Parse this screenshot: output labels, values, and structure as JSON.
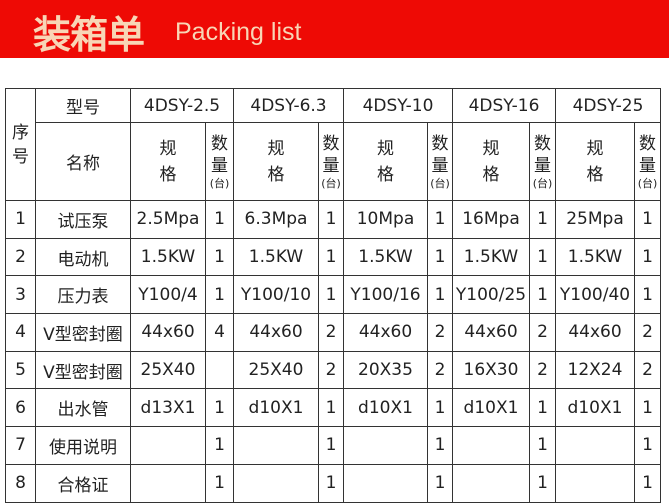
{
  "header": {
    "title_cn": "装箱单",
    "title_en": "Packing list",
    "banner_color": "#ee0a05"
  },
  "table": {
    "seq_label_1": "序",
    "seq_label_2": "号",
    "model_label": "型号",
    "name_label": "名称",
    "models": [
      "4DSY-2.5",
      "4DSY-6.3",
      "4DSY-10",
      "4DSY-16",
      "4DSY-25"
    ],
    "spec_label_1": "规",
    "spec_label_2": "格",
    "qty_label_1": "数",
    "qty_label_2": "量",
    "qty_unit": "(台)",
    "rows": [
      {
        "no": "1",
        "name": "试压泵",
        "cells": [
          [
            "2.5Mpa",
            "1"
          ],
          [
            "6.3Mpa",
            "1"
          ],
          [
            "10Mpa",
            "1"
          ],
          [
            "16Mpa",
            "1"
          ],
          [
            "25Mpa",
            "1"
          ]
        ]
      },
      {
        "no": "2",
        "name": "电动机",
        "cells": [
          [
            "1.5KW",
            "1"
          ],
          [
            "1.5KW",
            "1"
          ],
          [
            "1.5KW",
            "1"
          ],
          [
            "1.5KW",
            "1"
          ],
          [
            "1.5KW",
            "1"
          ]
        ]
      },
      {
        "no": "3",
        "name": "压力表",
        "cells": [
          [
            "Y100/4",
            "1"
          ],
          [
            "Y100/10",
            "1"
          ],
          [
            "Y100/16",
            "1"
          ],
          [
            "Y100/25",
            "1"
          ],
          [
            "Y100/40",
            "1"
          ]
        ]
      },
      {
        "no": "4",
        "name": "V型密封圈",
        "cells": [
          [
            "44x60",
            "4"
          ],
          [
            "44x60",
            "2"
          ],
          [
            "44x60",
            "2"
          ],
          [
            "44x60",
            "2"
          ],
          [
            "44x60",
            "2"
          ]
        ]
      },
      {
        "no": "5",
        "name": "V型密封圈",
        "cells": [
          [
            "25X40",
            ""
          ],
          [
            "25X40",
            "2"
          ],
          [
            "20X35",
            "2"
          ],
          [
            "16X30",
            "2"
          ],
          [
            "12X24",
            "2"
          ]
        ]
      },
      {
        "no": "6",
        "name": "出水管",
        "cells": [
          [
            "d13X1",
            "1"
          ],
          [
            "d10X1",
            "1"
          ],
          [
            "d10X1",
            "1"
          ],
          [
            "d10X1",
            "1"
          ],
          [
            "d10X1",
            "1"
          ]
        ]
      },
      {
        "no": "7",
        "name": "使用说明",
        "cells": [
          [
            "",
            "1"
          ],
          [
            "",
            "1"
          ],
          [
            "",
            "1"
          ],
          [
            "",
            "1"
          ],
          [
            "",
            "1"
          ]
        ]
      },
      {
        "no": "8",
        "name": "合格证",
        "cells": [
          [
            "",
            "1"
          ],
          [
            "",
            "1"
          ],
          [
            "",
            "1"
          ],
          [
            "",
            "1"
          ],
          [
            "",
            "1"
          ]
        ]
      }
    ]
  }
}
